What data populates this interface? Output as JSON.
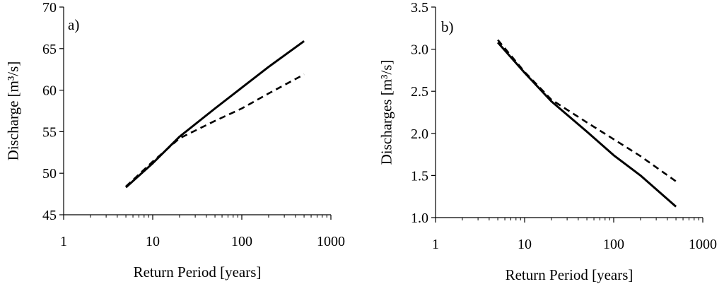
{
  "chart_data": [
    {
      "type": "line",
      "panel_label": "a)",
      "xlabel": "Return Period [years]",
      "ylabel": "Discharge [m³/s]",
      "x_scale": "log",
      "xlim": [
        1,
        1000
      ],
      "ylim": [
        45,
        70
      ],
      "x_ticks": [
        1,
        10,
        100,
        1000
      ],
      "x_tick_labels": [
        "1",
        "10",
        "100",
        "1000"
      ],
      "y_ticks": [
        45,
        50,
        55,
        60,
        65,
        70
      ],
      "y_tick_labels": [
        "45",
        "50",
        "55",
        "60",
        "65",
        "70"
      ],
      "grid": false,
      "series": [
        {
          "style": "solid",
          "x": [
            5,
            10,
            20,
            50,
            100,
            200,
            500
          ],
          "y": [
            48.3,
            51.2,
            54.4,
            57.8,
            60.3,
            62.8,
            65.9
          ]
        },
        {
          "style": "dashed",
          "x": [
            5,
            10,
            20,
            50,
            100,
            200,
            500
          ],
          "y": [
            48.4,
            51.4,
            54.2,
            56.3,
            57.8,
            59.6,
            61.9
          ]
        }
      ]
    },
    {
      "type": "line",
      "panel_label": "b)",
      "xlabel": "Return Period [years]",
      "ylabel": "Discharges [m³/s]",
      "x_scale": "log",
      "xlim": [
        1,
        1000
      ],
      "ylim": [
        1.0,
        3.5
      ],
      "x_ticks": [
        1,
        10,
        100,
        1000
      ],
      "x_tick_labels": [
        "1",
        "10",
        "100",
        "1000"
      ],
      "y_ticks": [
        1.0,
        1.5,
        2.0,
        2.5,
        3.0,
        3.5
      ],
      "y_tick_labels": [
        "1.0",
        "1.5",
        "2.0",
        "2.5",
        "3.0",
        "3.5"
      ],
      "grid": false,
      "series": [
        {
          "style": "solid",
          "x": [
            5,
            10,
            20,
            50,
            100,
            200,
            500
          ],
          "y": [
            3.08,
            2.72,
            2.38,
            2.02,
            1.74,
            1.5,
            1.13
          ]
        },
        {
          "style": "dashed",
          "x": [
            5,
            10,
            20,
            50,
            100,
            200,
            500
          ],
          "y": [
            3.11,
            2.73,
            2.4,
            2.13,
            1.93,
            1.73,
            1.43
          ]
        }
      ]
    }
  ]
}
